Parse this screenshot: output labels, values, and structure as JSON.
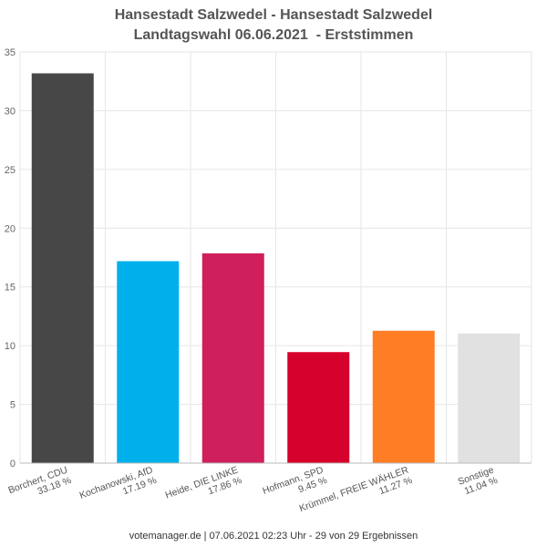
{
  "chart_data": {
    "type": "bar",
    "title_line1": "Hansestadt Salzwedel - Hansestadt Salzwedel",
    "title_line2": "Landtagswahl 06.06.2021  - Erststimmen",
    "categories": [
      {
        "name": "Borchert, CDU",
        "pct": "33.18 %"
      },
      {
        "name": "Kochanowski, AfD",
        "pct": "17.19 %"
      },
      {
        "name": "Heide, DIE LINKE",
        "pct": "17.86 %"
      },
      {
        "name": "Hofmann, SPD",
        "pct": "9.45 %"
      },
      {
        "name": "Krümmel, FREIE WÄHLER",
        "pct": "11.27 %"
      },
      {
        "name": "Sonstige",
        "pct": "11.04 %"
      }
    ],
    "values": [
      33.18,
      17.19,
      17.86,
      9.45,
      11.27,
      11.04
    ],
    "colors": [
      "#474747",
      "#00b0eb",
      "#cf1f5c",
      "#d6002c",
      "#ff7d25",
      "#e1e1e1"
    ],
    "ylim": [
      0,
      35
    ],
    "yticks": [
      0,
      5,
      10,
      15,
      20,
      25,
      30,
      35
    ],
    "grid": true
  },
  "footer": "votemanager.de | 07.06.2021 02:23 Uhr - 29 von 29 Ergebnissen"
}
